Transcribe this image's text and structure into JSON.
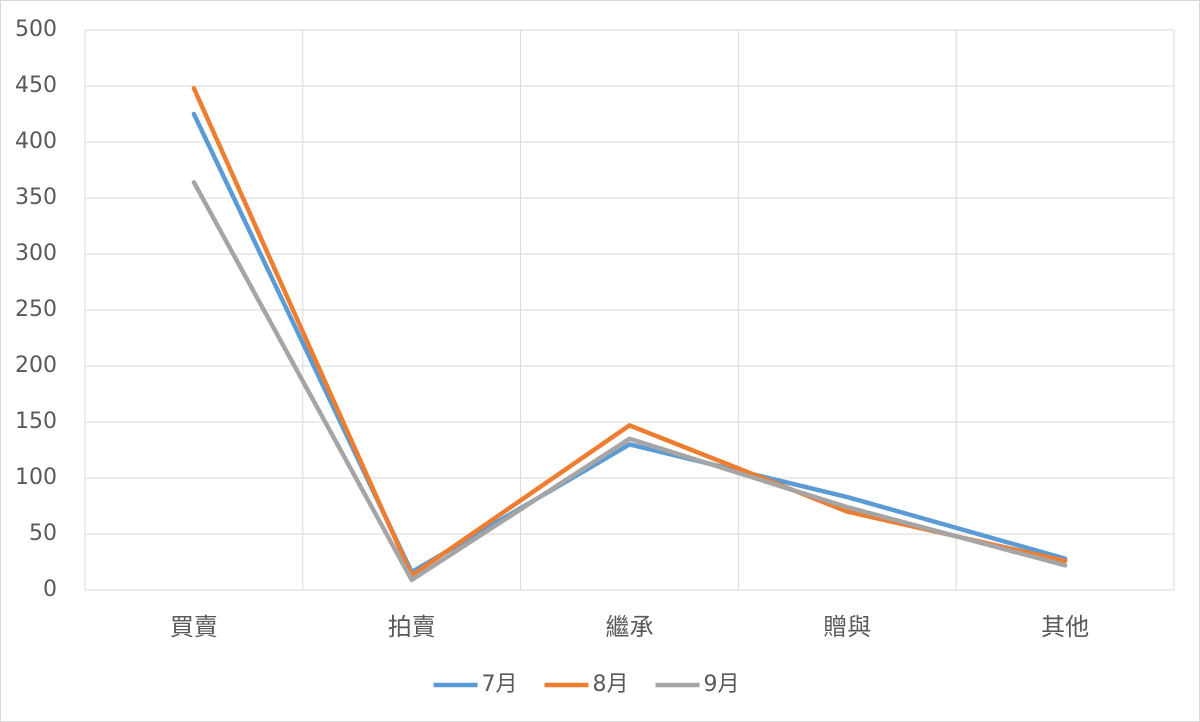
{
  "chart_data": {
    "type": "line",
    "categories": [
      "買賣",
      "拍賣",
      "繼承",
      "贈與",
      "其他"
    ],
    "series": [
      {
        "name": "7月",
        "color": "#5b9bd5",
        "values": [
          425,
          16,
          130,
          83,
          28
        ]
      },
      {
        "name": "8月",
        "color": "#ed7d31",
        "values": [
          448,
          13,
          147,
          70,
          26
        ]
      },
      {
        "name": "9月",
        "color": "#a5a5a5",
        "values": [
          364,
          9,
          135,
          74,
          22
        ]
      }
    ],
    "ylim": [
      0,
      500
    ],
    "yticks": [
      0,
      50,
      100,
      150,
      200,
      250,
      300,
      350,
      400,
      450,
      500
    ],
    "grid": true,
    "legend": "bottom"
  }
}
